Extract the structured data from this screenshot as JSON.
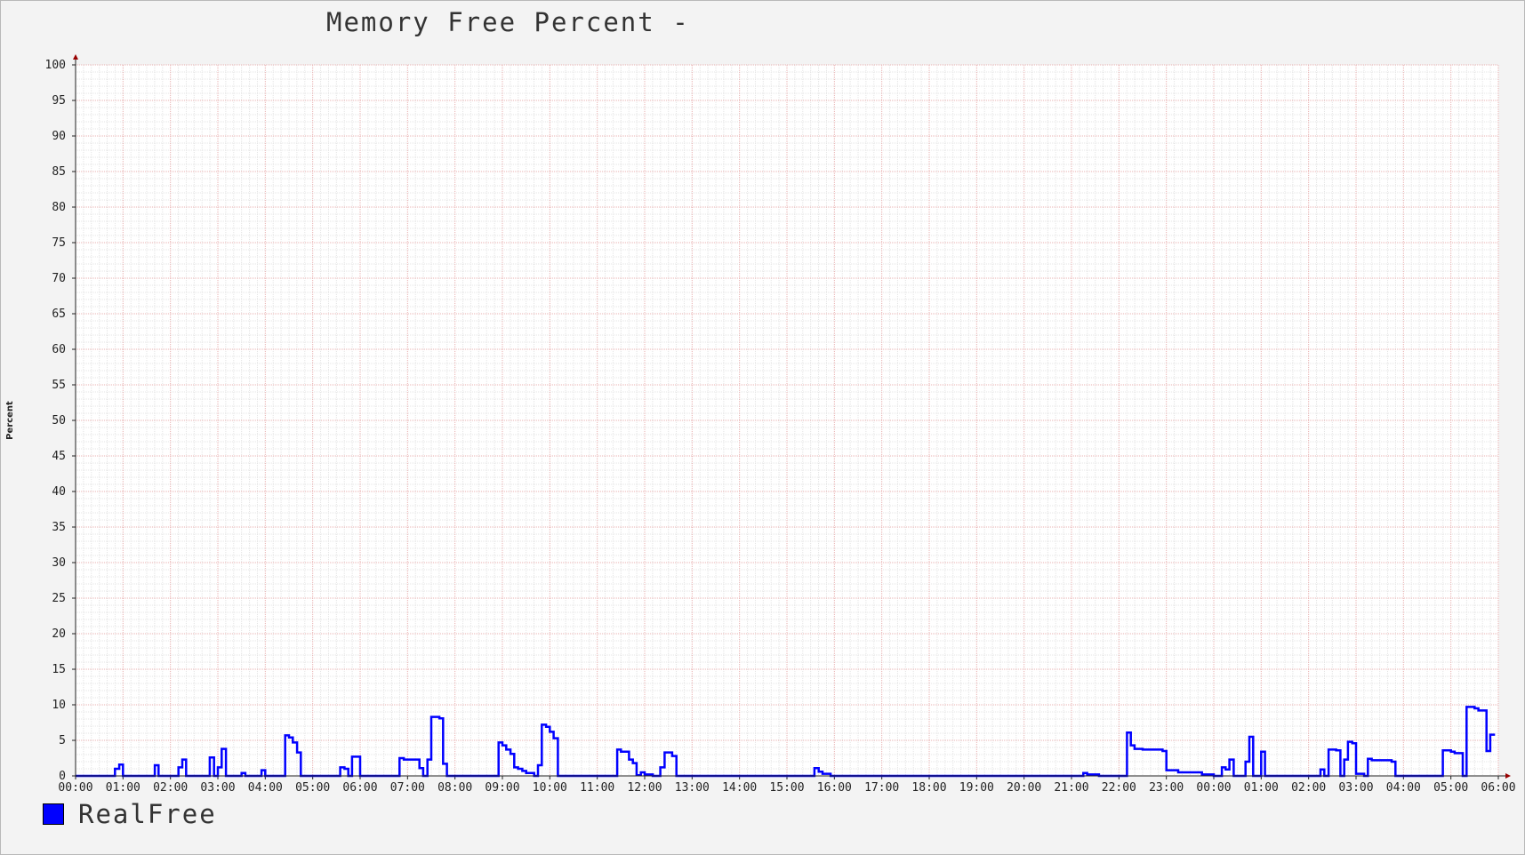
{
  "chart_data": {
    "type": "line",
    "title": "Memory Free Percent -",
    "ylabel": "Percent",
    "xlabel": "",
    "ylim": [
      0,
      100
    ],
    "yticks": [
      0,
      5,
      10,
      15,
      20,
      25,
      30,
      35,
      40,
      45,
      50,
      55,
      60,
      65,
      70,
      75,
      80,
      85,
      90,
      95,
      100
    ],
    "xticks": [
      "00:00",
      "01:00",
      "02:00",
      "03:00",
      "04:00",
      "05:00",
      "06:00",
      "07:00",
      "08:00",
      "09:00",
      "10:00",
      "11:00",
      "12:00",
      "13:00",
      "14:00",
      "15:00",
      "16:00",
      "17:00",
      "18:00",
      "19:00",
      "20:00",
      "21:00",
      "22:00",
      "23:00",
      "00:00",
      "01:00",
      "02:00",
      "03:00",
      "04:00",
      "05:00",
      "06:00"
    ],
    "x_unit": "hours from first tick",
    "xlim": [
      0,
      30
    ],
    "grid": true,
    "legend_placement": "bottom-left",
    "step": true,
    "series": [
      {
        "name": "RealFree",
        "color": "#0000ff",
        "points": [
          [
            0,
            0
          ],
          [
            0.83,
            0
          ],
          [
            0.83,
            1
          ],
          [
            0.92,
            1
          ],
          [
            0.92,
            1.6
          ],
          [
            1.0,
            1.6
          ],
          [
            1.0,
            0
          ],
          [
            1.67,
            0
          ],
          [
            1.67,
            1.5
          ],
          [
            1.75,
            1.5
          ],
          [
            1.75,
            0
          ],
          [
            2.17,
            0
          ],
          [
            2.17,
            1.2
          ],
          [
            2.25,
            1.2
          ],
          [
            2.25,
            2.3
          ],
          [
            2.33,
            2.3
          ],
          [
            2.33,
            0
          ],
          [
            2.83,
            0
          ],
          [
            2.83,
            2.6
          ],
          [
            2.92,
            2.6
          ],
          [
            2.92,
            0
          ],
          [
            3.0,
            0
          ],
          [
            3.0,
            1.2
          ],
          [
            3.08,
            1.2
          ],
          [
            3.08,
            3.8
          ],
          [
            3.17,
            3.8
          ],
          [
            3.17,
            0
          ],
          [
            3.5,
            0
          ],
          [
            3.5,
            0.4
          ],
          [
            3.58,
            0.4
          ],
          [
            3.58,
            0
          ],
          [
            3.92,
            0
          ],
          [
            3.92,
            0.8
          ],
          [
            4.0,
            0.8
          ],
          [
            4.0,
            0
          ],
          [
            4.42,
            0
          ],
          [
            4.42,
            5.7
          ],
          [
            4.5,
            5.7
          ],
          [
            4.5,
            5.4
          ],
          [
            4.58,
            5.4
          ],
          [
            4.58,
            4.7
          ],
          [
            4.67,
            4.7
          ],
          [
            4.67,
            3.3
          ],
          [
            4.75,
            3.3
          ],
          [
            4.75,
            0
          ],
          [
            5.58,
            0
          ],
          [
            5.58,
            1.2
          ],
          [
            5.67,
            1.2
          ],
          [
            5.67,
            1.0
          ],
          [
            5.75,
            1.0
          ],
          [
            5.75,
            0
          ],
          [
            5.83,
            0
          ],
          [
            5.83,
            2.7
          ],
          [
            6.0,
            2.7
          ],
          [
            6.0,
            0
          ],
          [
            6.83,
            0
          ],
          [
            6.83,
            2.5
          ],
          [
            6.92,
            2.5
          ],
          [
            6.92,
            2.3
          ],
          [
            7.25,
            2.3
          ],
          [
            7.25,
            1.1
          ],
          [
            7.33,
            1.1
          ],
          [
            7.33,
            0
          ],
          [
            7.42,
            0
          ],
          [
            7.42,
            2.3
          ],
          [
            7.5,
            2.3
          ],
          [
            7.5,
            8.3
          ],
          [
            7.67,
            8.3
          ],
          [
            7.67,
            8.1
          ],
          [
            7.75,
            8.1
          ],
          [
            7.75,
            1.7
          ],
          [
            7.83,
            1.7
          ],
          [
            7.83,
            0
          ],
          [
            8.92,
            0
          ],
          [
            8.92,
            4.7
          ],
          [
            9.0,
            4.7
          ],
          [
            9.0,
            4.3
          ],
          [
            9.08,
            4.3
          ],
          [
            9.08,
            3.7
          ],
          [
            9.17,
            3.7
          ],
          [
            9.17,
            3.1
          ],
          [
            9.25,
            3.1
          ],
          [
            9.25,
            1.2
          ],
          [
            9.33,
            1.2
          ],
          [
            9.33,
            1.0
          ],
          [
            9.42,
            1.0
          ],
          [
            9.42,
            0.7
          ],
          [
            9.5,
            0.7
          ],
          [
            9.5,
            0.4
          ],
          [
            9.67,
            0.4
          ],
          [
            9.67,
            0
          ],
          [
            9.75,
            0
          ],
          [
            9.75,
            1.5
          ],
          [
            9.83,
            1.5
          ],
          [
            9.83,
            7.2
          ],
          [
            9.92,
            7.2
          ],
          [
            9.92,
            6.9
          ],
          [
            10.0,
            6.9
          ],
          [
            10.0,
            6.2
          ],
          [
            10.08,
            6.2
          ],
          [
            10.08,
            5.3
          ],
          [
            10.17,
            5.3
          ],
          [
            10.17,
            0
          ],
          [
            11.42,
            0
          ],
          [
            11.42,
            3.7
          ],
          [
            11.5,
            3.7
          ],
          [
            11.5,
            3.4
          ],
          [
            11.67,
            3.4
          ],
          [
            11.67,
            2.3
          ],
          [
            11.75,
            2.3
          ],
          [
            11.75,
            1.8
          ],
          [
            11.83,
            1.8
          ],
          [
            11.83,
            0.1
          ],
          [
            11.92,
            0.1
          ],
          [
            11.92,
            0.5
          ],
          [
            12.0,
            0.5
          ],
          [
            12.0,
            0.2
          ],
          [
            12.17,
            0.2
          ],
          [
            12.17,
            0
          ],
          [
            12.33,
            0
          ],
          [
            12.33,
            1.2
          ],
          [
            12.42,
            1.2
          ],
          [
            12.42,
            3.3
          ],
          [
            12.58,
            3.3
          ],
          [
            12.58,
            2.8
          ],
          [
            12.67,
            2.8
          ],
          [
            12.67,
            0
          ],
          [
            15.58,
            0
          ],
          [
            15.58,
            1.1
          ],
          [
            15.67,
            1.1
          ],
          [
            15.67,
            0.6
          ],
          [
            15.75,
            0.6
          ],
          [
            15.75,
            0.3
          ],
          [
            15.92,
            0.3
          ],
          [
            15.92,
            0
          ],
          [
            21.25,
            0
          ],
          [
            21.25,
            0.4
          ],
          [
            21.33,
            0.4
          ],
          [
            21.33,
            0.2
          ],
          [
            21.58,
            0.2
          ],
          [
            21.58,
            0
          ],
          [
            22.17,
            0
          ],
          [
            22.17,
            6.1
          ],
          [
            22.25,
            6.1
          ],
          [
            22.25,
            4.3
          ],
          [
            22.33,
            4.3
          ],
          [
            22.33,
            3.8
          ],
          [
            22.5,
            3.8
          ],
          [
            22.5,
            3.7
          ],
          [
            22.92,
            3.7
          ],
          [
            22.92,
            3.5
          ],
          [
            23.0,
            3.5
          ],
          [
            23.0,
            0.8
          ],
          [
            23.25,
            0.8
          ],
          [
            23.25,
            0.5
          ],
          [
            23.75,
            0.5
          ],
          [
            23.75,
            0.2
          ],
          [
            24.0,
            0.2
          ],
          [
            24.0,
            0
          ],
          [
            24.17,
            0
          ],
          [
            24.17,
            1.2
          ],
          [
            24.25,
            1.2
          ],
          [
            24.25,
            0.9
          ],
          [
            24.33,
            0.9
          ],
          [
            24.33,
            2.3
          ],
          [
            24.42,
            2.3
          ],
          [
            24.42,
            0
          ],
          [
            24.67,
            0
          ],
          [
            24.67,
            2.0
          ],
          [
            24.75,
            2.0
          ],
          [
            24.75,
            5.5
          ],
          [
            24.83,
            5.5
          ],
          [
            24.83,
            0
          ],
          [
            25.0,
            0
          ],
          [
            25.0,
            3.4
          ],
          [
            25.08,
            3.4
          ],
          [
            25.08,
            0
          ],
          [
            26.25,
            0
          ],
          [
            26.25,
            0.9
          ],
          [
            26.33,
            0.9
          ],
          [
            26.33,
            0
          ],
          [
            26.42,
            0
          ],
          [
            26.42,
            3.7
          ],
          [
            26.58,
            3.7
          ],
          [
            26.58,
            3.6
          ],
          [
            26.67,
            3.6
          ],
          [
            26.67,
            0
          ],
          [
            26.75,
            0
          ],
          [
            26.75,
            2.3
          ],
          [
            26.83,
            2.3
          ],
          [
            26.83,
            4.8
          ],
          [
            26.92,
            4.8
          ],
          [
            26.92,
            4.6
          ],
          [
            27.0,
            4.6
          ],
          [
            27.0,
            0.3
          ],
          [
            27.17,
            0.3
          ],
          [
            27.17,
            0
          ],
          [
            27.25,
            0
          ],
          [
            27.25,
            2.4
          ],
          [
            27.33,
            2.4
          ],
          [
            27.33,
            2.2
          ],
          [
            27.75,
            2.2
          ],
          [
            27.75,
            2.0
          ],
          [
            27.83,
            2.0
          ],
          [
            27.83,
            0
          ],
          [
            28.83,
            0
          ],
          [
            28.83,
            3.6
          ],
          [
            29.0,
            3.6
          ],
          [
            29.0,
            3.4
          ],
          [
            29.08,
            3.4
          ],
          [
            29.08,
            3.2
          ],
          [
            29.25,
            3.2
          ],
          [
            29.25,
            0
          ],
          [
            29.33,
            0
          ],
          [
            29.33,
            9.7
          ],
          [
            29.5,
            9.7
          ],
          [
            29.5,
            9.5
          ],
          [
            29.58,
            9.5
          ],
          [
            29.58,
            9.2
          ],
          [
            29.75,
            9.2
          ],
          [
            29.75,
            3.5
          ],
          [
            29.83,
            3.5
          ],
          [
            29.83,
            5.8
          ],
          [
            29.93,
            5.8
          ]
        ]
      }
    ]
  },
  "colors": {
    "background": "#f3f3f3",
    "plot_background": "#ffffff",
    "major_grid": "#e8b0b0",
    "minor_grid": "#e4e4e4",
    "axis": "#222222",
    "arrow": "#990000",
    "series": "#0000ff"
  }
}
